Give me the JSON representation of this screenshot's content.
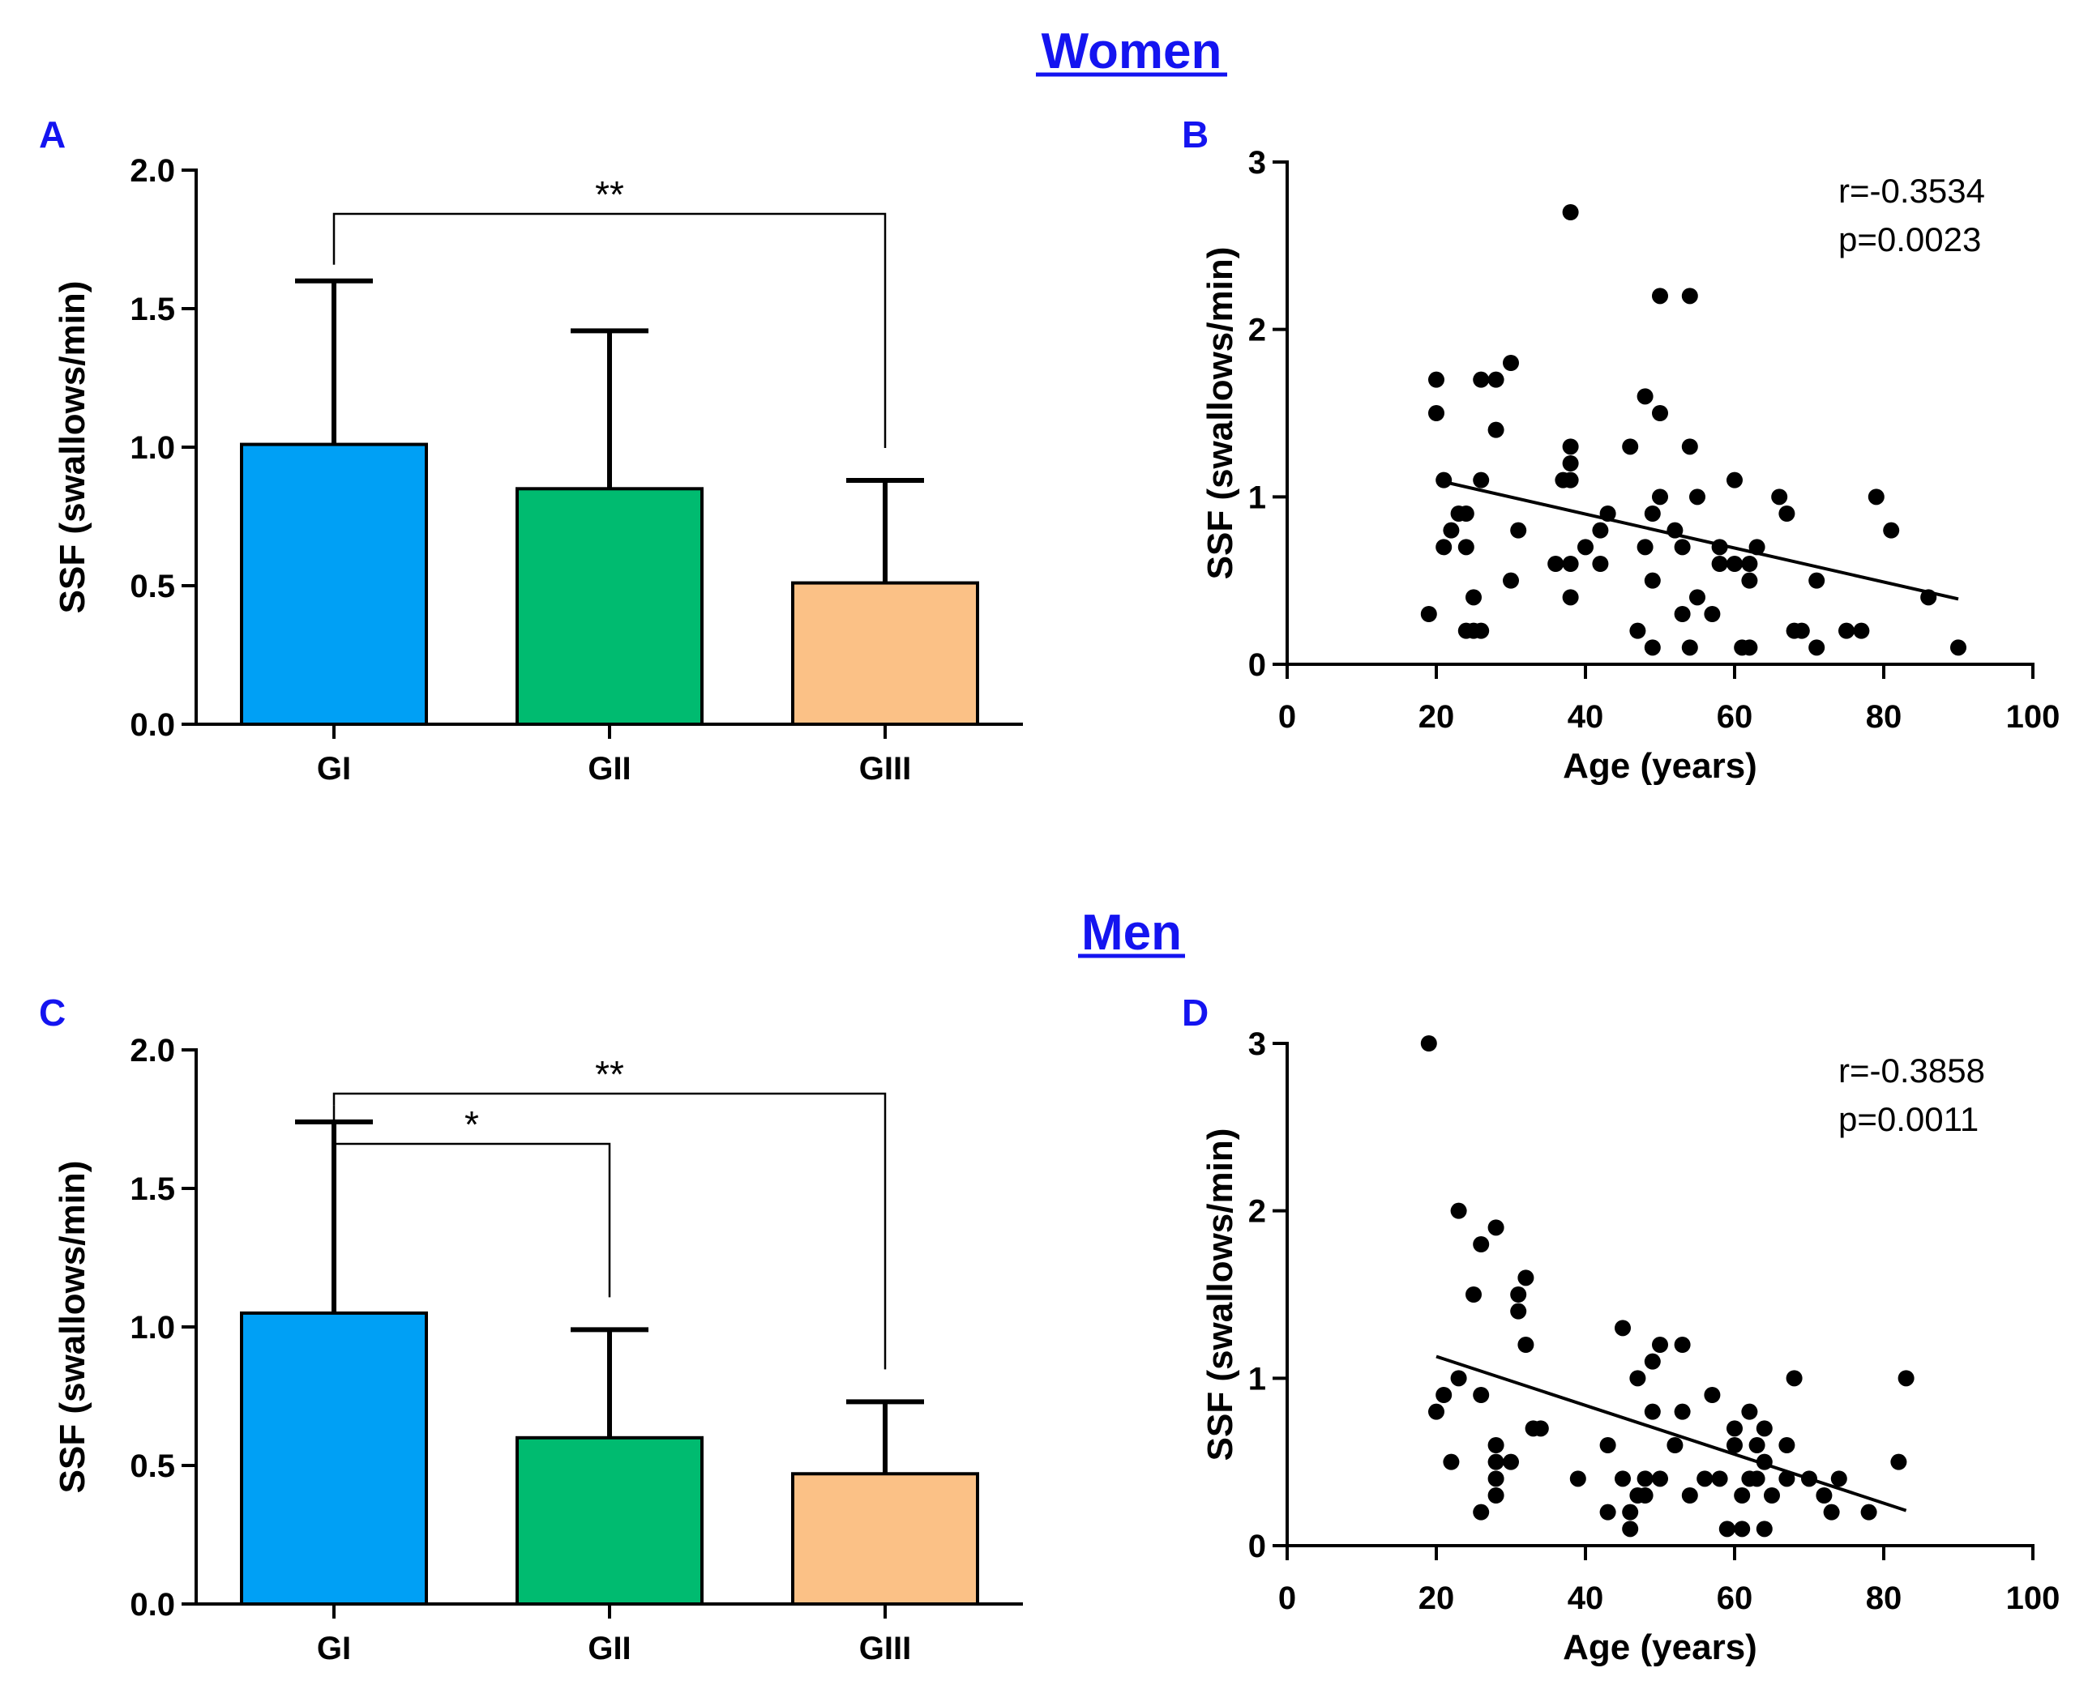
{
  "sections": {
    "women": "Women",
    "men": "Men"
  },
  "colors": {
    "title": "#1414f0",
    "bars": [
      "#00a0f5",
      "#00bb70",
      "#fbc186"
    ]
  },
  "chart_data": [
    {
      "id": "A",
      "letter": "A",
      "type": "bar",
      "title": "",
      "xlabel": "",
      "ylabel": "SSF (swallows/min)",
      "categories": [
        "GI",
        "GII",
        "GIII"
      ],
      "values": [
        1.01,
        0.85,
        0.51
      ],
      "errors": [
        0.59,
        0.57,
        0.37
      ],
      "ylim": [
        0,
        2.0
      ],
      "yticks": [
        0.0,
        0.5,
        1.0,
        1.5,
        2.0
      ],
      "ytick_labels": [
        "0.0",
        "0.5",
        "1.0",
        "1.5",
        "2.0"
      ],
      "significance": [
        {
          "from": 0,
          "to": 2,
          "label": "**"
        }
      ]
    },
    {
      "id": "B",
      "letter": "B",
      "type": "scatter",
      "title": "",
      "xlabel": "Age (years)",
      "ylabel": "SSF (swallows/min)",
      "xlim": [
        0,
        100
      ],
      "ylim": [
        0,
        3
      ],
      "xticks": [
        0,
        20,
        40,
        60,
        80,
        100
      ],
      "yticks": [
        0,
        1,
        2,
        3
      ],
      "r_text": "r=-0.3534",
      "p_text": "p=0.0023",
      "trend": {
        "x": [
          20,
          90
        ],
        "y": [
          1.1,
          0.39
        ]
      },
      "points": [
        [
          19,
          0.3
        ],
        [
          20,
          1.7
        ],
        [
          20,
          1.5
        ],
        [
          21,
          1.1
        ],
        [
          21,
          0.7
        ],
        [
          22,
          0.8
        ],
        [
          23,
          0.9
        ],
        [
          24,
          0.9
        ],
        [
          24,
          0.2
        ],
        [
          24,
          0.7
        ],
        [
          25,
          0.2
        ],
        [
          25,
          0.4
        ],
        [
          26,
          1.7
        ],
        [
          26,
          1.1
        ],
        [
          26,
          0.2
        ],
        [
          28,
          1.7
        ],
        [
          28,
          1.4
        ],
        [
          30,
          1.8
        ],
        [
          30,
          0.5
        ],
        [
          31,
          0.8
        ],
        [
          36,
          0.6
        ],
        [
          37,
          1.1
        ],
        [
          38,
          2.7
        ],
        [
          38,
          1.3
        ],
        [
          38,
          1.2
        ],
        [
          38,
          1.1
        ],
        [
          38,
          0.6
        ],
        [
          38,
          0.4
        ],
        [
          40,
          0.7
        ],
        [
          42,
          0.6
        ],
        [
          42,
          0.8
        ],
        [
          43,
          0.9
        ],
        [
          46,
          1.3
        ],
        [
          47,
          0.2
        ],
        [
          48,
          1.6
        ],
        [
          48,
          0.7
        ],
        [
          49,
          0.9
        ],
        [
          49,
          0.5
        ],
        [
          49,
          0.1
        ],
        [
          50,
          2.2
        ],
        [
          50,
          1.5
        ],
        [
          50,
          1.0
        ],
        [
          52,
          0.8
        ],
        [
          53,
          0.7
        ],
        [
          53,
          0.3
        ],
        [
          54,
          2.2
        ],
        [
          54,
          1.3
        ],
        [
          54,
          0.1
        ],
        [
          55,
          1.0
        ],
        [
          55,
          0.4
        ],
        [
          57,
          0.3
        ],
        [
          58,
          0.7
        ],
        [
          58,
          0.6
        ],
        [
          60,
          1.1
        ],
        [
          60,
          0.6
        ],
        [
          61,
          0.1
        ],
        [
          62,
          0.6
        ],
        [
          62,
          0.5
        ],
        [
          62,
          0.1
        ],
        [
          63,
          0.7
        ],
        [
          66,
          1.0
        ],
        [
          67,
          0.9
        ],
        [
          68,
          0.2
        ],
        [
          69,
          0.2
        ],
        [
          71,
          0.5
        ],
        [
          71,
          0.1
        ],
        [
          75,
          0.2
        ],
        [
          77,
          0.2
        ],
        [
          79,
          1.0
        ],
        [
          81,
          0.8
        ],
        [
          86,
          0.4
        ],
        [
          90,
          0.1
        ]
      ]
    },
    {
      "id": "C",
      "letter": "C",
      "type": "bar",
      "title": "",
      "xlabel": "",
      "ylabel": "SSF (swallows/min)",
      "categories": [
        "GI",
        "GII",
        "GIII"
      ],
      "values": [
        1.05,
        0.6,
        0.47
      ],
      "errors": [
        0.69,
        0.39,
        0.26
      ],
      "ylim": [
        0,
        2.0
      ],
      "yticks": [
        0.0,
        0.5,
        1.0,
        1.5,
        2.0
      ],
      "ytick_labels": [
        "0.0",
        "0.5",
        "1.0",
        "1.5",
        "2.0"
      ],
      "significance": [
        {
          "from": 0,
          "to": 1,
          "label": "*"
        },
        {
          "from": 0,
          "to": 2,
          "label": "**"
        }
      ]
    },
    {
      "id": "D",
      "letter": "D",
      "type": "scatter",
      "title": "",
      "xlabel": "Age (years)",
      "ylabel": "SSF (swallows/min)",
      "xlim": [
        0,
        100
      ],
      "ylim": [
        0,
        3
      ],
      "xticks": [
        0,
        20,
        40,
        60,
        80,
        100
      ],
      "yticks": [
        0,
        1,
        2,
        3
      ],
      "r_text": "r=-0.3858",
      "p_text": "p=0.0011",
      "trend": {
        "x": [
          20,
          83
        ],
        "y": [
          1.13,
          0.21
        ]
      },
      "points": [
        [
          19,
          3.0
        ],
        [
          20,
          0.8
        ],
        [
          21,
          0.9
        ],
        [
          22,
          0.5
        ],
        [
          23,
          2.0
        ],
        [
          23,
          1.0
        ],
        [
          25,
          1.5
        ],
        [
          26,
          1.8
        ],
        [
          26,
          0.9
        ],
        [
          26,
          0.2
        ],
        [
          28,
          1.9
        ],
        [
          28,
          0.6
        ],
        [
          28,
          0.5
        ],
        [
          28,
          0.4
        ],
        [
          28,
          0.3
        ],
        [
          30,
          0.5
        ],
        [
          31,
          1.5
        ],
        [
          31,
          1.4
        ],
        [
          32,
          1.6
        ],
        [
          32,
          1.2
        ],
        [
          33,
          0.7
        ],
        [
          34,
          0.7
        ],
        [
          39,
          0.4
        ],
        [
          43,
          0.6
        ],
        [
          43,
          0.2
        ],
        [
          45,
          1.3
        ],
        [
          45,
          0.4
        ],
        [
          46,
          0.2
        ],
        [
          46,
          0.1
        ],
        [
          47,
          1.0
        ],
        [
          47,
          0.3
        ],
        [
          48,
          0.4
        ],
        [
          48,
          0.3
        ],
        [
          49,
          1.1
        ],
        [
          49,
          0.8
        ],
        [
          50,
          1.2
        ],
        [
          50,
          0.4
        ],
        [
          52,
          0.6
        ],
        [
          53,
          1.2
        ],
        [
          53,
          0.8
        ],
        [
          54,
          0.3
        ],
        [
          56,
          0.4
        ],
        [
          57,
          0.9
        ],
        [
          58,
          0.4
        ],
        [
          59,
          0.1
        ],
        [
          60,
          0.7
        ],
        [
          60,
          0.6
        ],
        [
          61,
          0.3
        ],
        [
          61,
          0.1
        ],
        [
          62,
          0.8
        ],
        [
          62,
          0.4
        ],
        [
          63,
          0.6
        ],
        [
          63,
          0.4
        ],
        [
          64,
          0.7
        ],
        [
          64,
          0.5
        ],
        [
          64,
          0.1
        ],
        [
          65,
          0.3
        ],
        [
          67,
          0.6
        ],
        [
          67,
          0.4
        ],
        [
          68,
          1.0
        ],
        [
          70,
          0.4
        ],
        [
          72,
          0.3
        ],
        [
          73,
          0.2
        ],
        [
          74,
          0.4
        ],
        [
          78,
          0.2
        ],
        [
          82,
          0.5
        ],
        [
          83,
          1.0
        ]
      ]
    }
  ]
}
